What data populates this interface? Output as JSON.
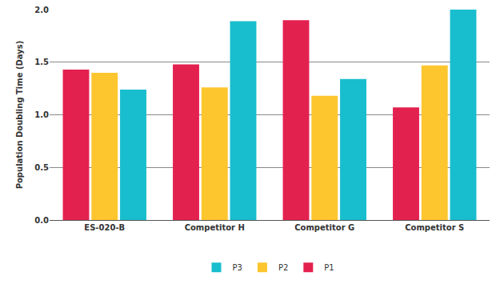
{
  "chart_data": {
    "type": "bar",
    "y_label": "Population Doubling Time (Days)",
    "categories": [
      "ES-020-B",
      "Competitor H",
      "Competitor G",
      "Competitor S"
    ],
    "series": [
      {
        "name": "P1",
        "color": "#e3214f",
        "values": [
          1.43,
          1.48,
          1.9,
          1.07
        ]
      },
      {
        "name": "P2",
        "color": "#fdc62f",
        "values": [
          1.4,
          1.26,
          1.18,
          1.47
        ]
      },
      {
        "name": "P3",
        "color": "#18bece",
        "values": [
          1.24,
          1.89,
          1.34,
          2.0
        ]
      }
    ],
    "ylim": [
      0,
      2
    ],
    "yticks": [
      {
        "value": 0,
        "label": "0.0"
      },
      0.5,
      {
        "value": 1,
        "label": "1.0"
      },
      1.5,
      {
        "value": 2,
        "label": "2.0"
      }
    ],
    "grid": true,
    "legend": "bottom"
  }
}
